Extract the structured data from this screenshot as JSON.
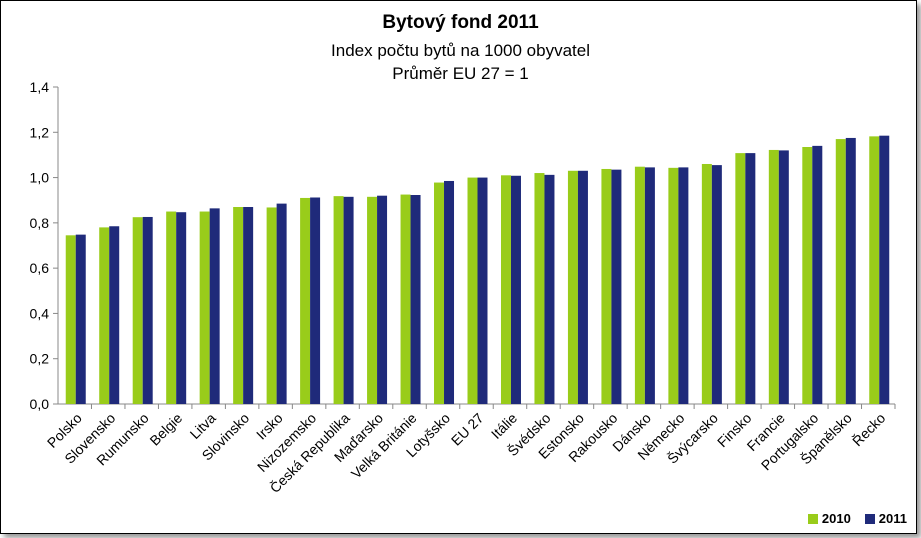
{
  "chart_data": {
    "type": "bar",
    "title": "Bytový fond 2011",
    "subtitle_lines": [
      "Index počtu bytů na 1000 obyvatel",
      "Průměr EU 27 = 1"
    ],
    "categories": [
      "Polsko",
      "Slovensko",
      "Rumunsko",
      "Belgie",
      "Litva",
      "Slovinsko",
      "Irsko",
      "Nizozemsko",
      "Česká Republika",
      "Maďarsko",
      "Velká Británie",
      "Lotyšsko",
      "EU 27",
      "Itálie",
      "Švédsko",
      "Estonsko",
      "Rakousko",
      "Dánsko",
      "Německo",
      "Švýcarsko",
      "Finsko",
      "Francie",
      "Portugalsko",
      "Španělsko",
      "Řecko"
    ],
    "series": [
      {
        "name": "2010",
        "color": "#99cc1a",
        "values": [
          0.745,
          0.78,
          0.825,
          0.85,
          0.85,
          0.87,
          0.868,
          0.91,
          0.918,
          0.915,
          0.925,
          0.978,
          1.0,
          1.01,
          1.02,
          1.03,
          1.038,
          1.048,
          1.043,
          1.06,
          1.108,
          1.122,
          1.135,
          1.17,
          1.182
        ]
      },
      {
        "name": "2011",
        "color": "#1f2a7a",
        "values": [
          0.748,
          0.785,
          0.826,
          0.847,
          0.864,
          0.87,
          0.885,
          0.912,
          0.915,
          0.92,
          0.923,
          0.985,
          1.0,
          1.008,
          1.012,
          1.03,
          1.035,
          1.045,
          1.045,
          1.055,
          1.108,
          1.12,
          1.14,
          1.175,
          1.185
        ]
      }
    ],
    "yticks": [
      "0,0",
      "0,2",
      "0,4",
      "0,6",
      "0,8",
      "1,0",
      "1,2",
      "1,4"
    ],
    "ylim": [
      0,
      1.4
    ],
    "grid": false,
    "legend_position": "bottom-right"
  }
}
